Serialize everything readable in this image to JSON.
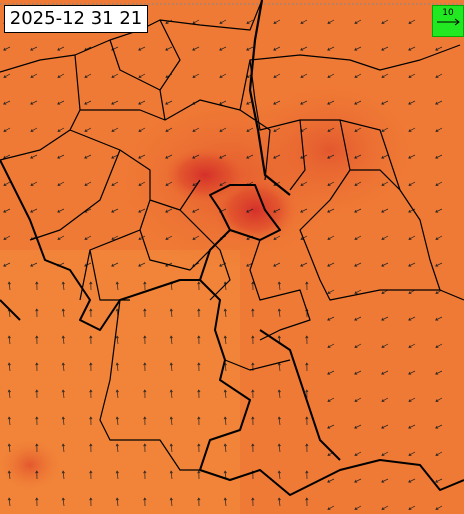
{
  "timestamp": "2025-12 31 21",
  "legend": {
    "label": "10"
  }
}
